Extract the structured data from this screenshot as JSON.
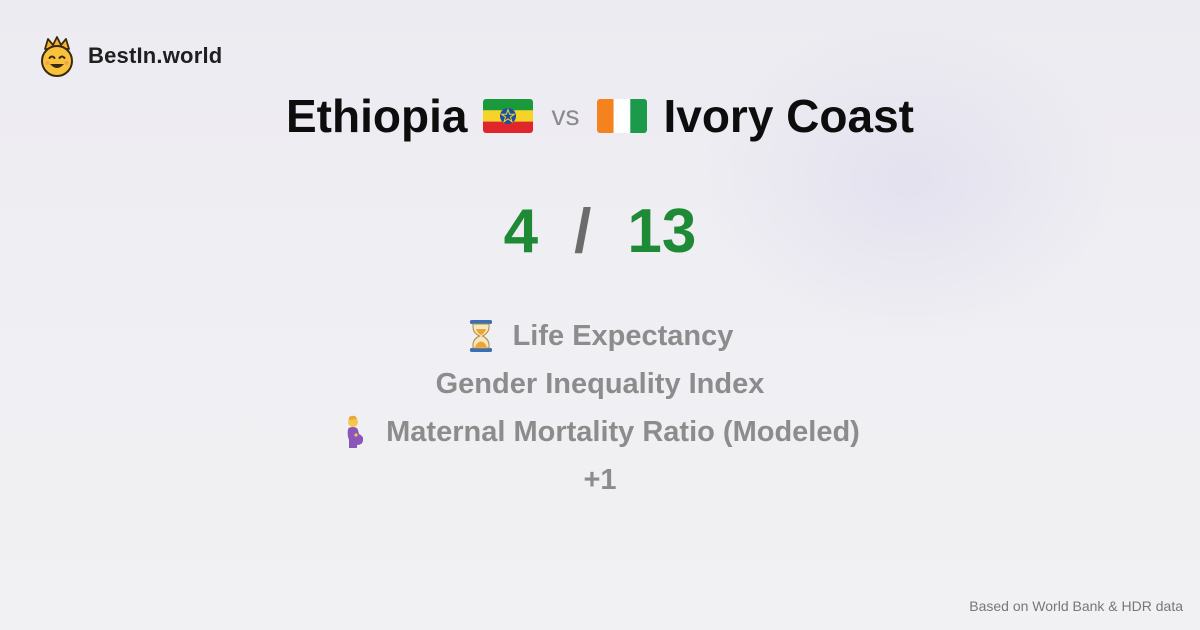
{
  "brand": {
    "name": "BestIn.world",
    "logo_icon": "smiling-crown-face-icon"
  },
  "comparison": {
    "left_country": "Ethiopia",
    "left_flag": "ethiopia-flag-icon",
    "vs_label": "vs",
    "right_country": "Ivory Coast",
    "right_flag": "ivory-coast-flag-icon"
  },
  "score": {
    "left": "4",
    "separator": "/",
    "right": "13",
    "color": "#1e8a35"
  },
  "metrics": [
    {
      "icon": "hourglass-icon",
      "label": "Life Expectancy"
    },
    {
      "icon": "",
      "label": "Gender Inequality Index"
    },
    {
      "icon": "pregnant-woman-icon",
      "label": "Maternal Mortality Ratio (Modeled)"
    },
    {
      "icon": "",
      "label": "+1"
    }
  ],
  "footer": {
    "source": "Based on World Bank & HDR data"
  }
}
